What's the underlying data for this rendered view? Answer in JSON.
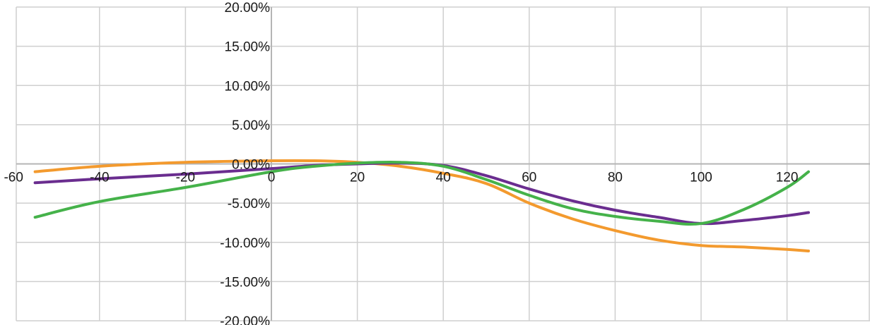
{
  "chart_data": {
    "type": "line",
    "title": "",
    "xlabel": "",
    "ylabel": "",
    "xlim": [
      -60,
      130
    ],
    "ylim": [
      -0.2,
      0.2
    ],
    "grid": true,
    "legend": "none",
    "x_ticks": [
      {
        "value": -60,
        "label": "-60"
      },
      {
        "value": -40,
        "label": "-40"
      },
      {
        "value": -20,
        "label": "-20"
      },
      {
        "value": 0,
        "label": "0"
      },
      {
        "value": 20,
        "label": "20"
      },
      {
        "value": 40,
        "label": "40"
      },
      {
        "value": 60,
        "label": "60"
      },
      {
        "value": 80,
        "label": "80"
      },
      {
        "value": 100,
        "label": "100"
      },
      {
        "value": 120,
        "label": "120"
      }
    ],
    "y_ticks": [
      {
        "value": 0.2,
        "label": "20.00%"
      },
      {
        "value": 0.15,
        "label": "15.00%"
      },
      {
        "value": 0.1,
        "label": "10.00%"
      },
      {
        "value": 0.05,
        "label": "5.00%"
      },
      {
        "value": 0.0,
        "label": "0.00%"
      },
      {
        "value": -0.05,
        "label": "-5.00%"
      },
      {
        "value": -0.1,
        "label": "-10.00%"
      },
      {
        "value": -0.15,
        "label": "-15.00%"
      },
      {
        "value": -0.2,
        "label": "-20.00%"
      }
    ],
    "series": [
      {
        "color": "#f39a2e",
        "points": [
          [
            -55,
            -0.01
          ],
          [
            -40,
            -0.003
          ],
          [
            -20,
            0.002
          ],
          [
            0,
            0.004
          ],
          [
            10,
            0.004
          ],
          [
            20,
            0.002
          ],
          [
            30,
            -0.003
          ],
          [
            40,
            -0.012
          ],
          [
            50,
            -0.025
          ],
          [
            60,
            -0.05
          ],
          [
            70,
            -0.07
          ],
          [
            80,
            -0.085
          ],
          [
            90,
            -0.097
          ],
          [
            100,
            -0.104
          ],
          [
            110,
            -0.106
          ],
          [
            120,
            -0.109
          ],
          [
            125,
            -0.111
          ]
        ]
      },
      {
        "color": "#6a2d8f",
        "points": [
          [
            -55,
            -0.024
          ],
          [
            -40,
            -0.019
          ],
          [
            -20,
            -0.013
          ],
          [
            0,
            -0.006
          ],
          [
            10,
            -0.002
          ],
          [
            20,
            0.0
          ],
          [
            30,
            0.001
          ],
          [
            40,
            -0.002
          ],
          [
            50,
            -0.015
          ],
          [
            60,
            -0.032
          ],
          [
            70,
            -0.047
          ],
          [
            80,
            -0.059
          ],
          [
            90,
            -0.068
          ],
          [
            100,
            -0.076
          ],
          [
            110,
            -0.072
          ],
          [
            120,
            -0.066
          ],
          [
            125,
            -0.062
          ]
        ]
      },
      {
        "color": "#45b24a",
        "points": [
          [
            -55,
            -0.068
          ],
          [
            -40,
            -0.048
          ],
          [
            -20,
            -0.03
          ],
          [
            0,
            -0.01
          ],
          [
            10,
            -0.003
          ],
          [
            20,
            0.001
          ],
          [
            30,
            0.002
          ],
          [
            40,
            -0.003
          ],
          [
            50,
            -0.02
          ],
          [
            60,
            -0.04
          ],
          [
            70,
            -0.057
          ],
          [
            80,
            -0.067
          ],
          [
            90,
            -0.073
          ],
          [
            100,
            -0.076
          ],
          [
            110,
            -0.058
          ],
          [
            120,
            -0.03
          ],
          [
            125,
            -0.01
          ]
        ]
      }
    ]
  }
}
